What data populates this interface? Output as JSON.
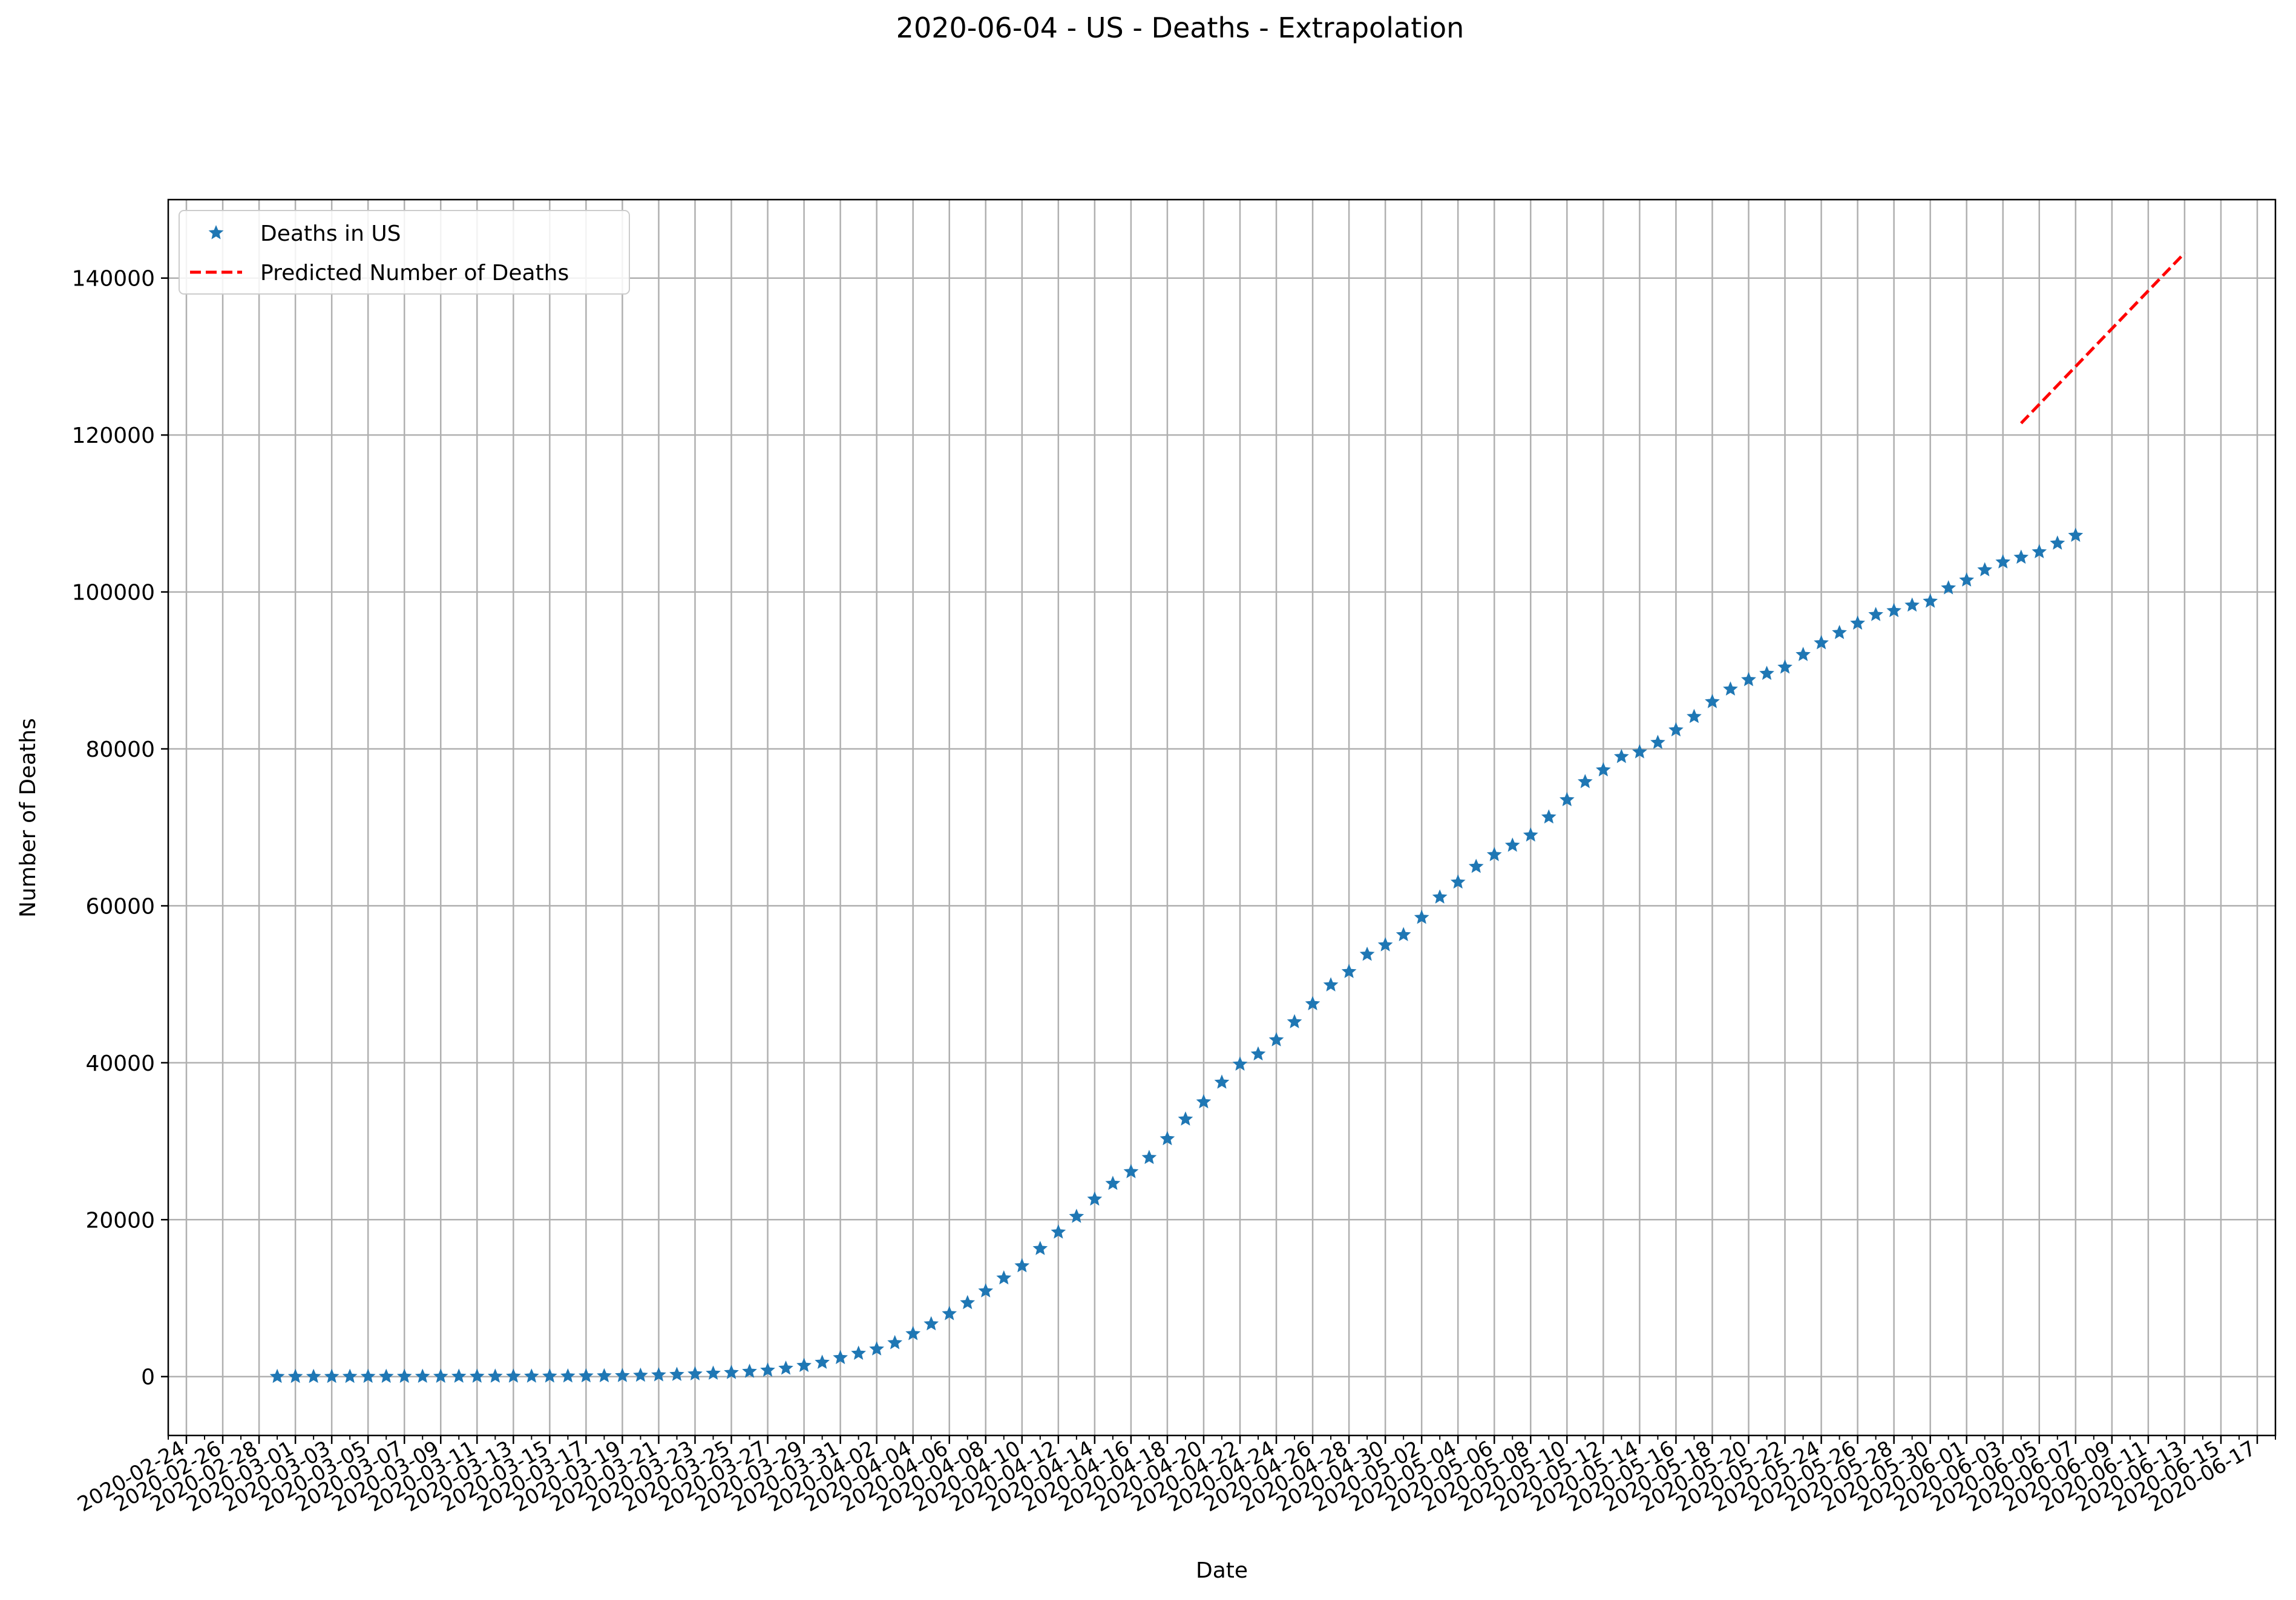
{
  "figure": {
    "title": "2020-06-04 - US - Deaths - Extrapolation"
  },
  "chart_data": {
    "type": "line",
    "title": "2020-06-04 - US - Deaths - Extrapolation",
    "xlabel": "Date",
    "ylabel": "Number of Deaths",
    "xlim": [
      "2020-02-23",
      "2020-06-18"
    ],
    "ylim": [
      -7500,
      150000
    ],
    "grid": true,
    "legend_position": "top-left",
    "x_tick_labels": [
      "2020-02-24",
      "2020-02-26",
      "2020-02-28",
      "2020-03-01",
      "2020-03-03",
      "2020-03-05",
      "2020-03-07",
      "2020-03-09",
      "2020-03-11",
      "2020-03-13",
      "2020-03-15",
      "2020-03-17",
      "2020-03-19",
      "2020-03-21",
      "2020-03-23",
      "2020-03-25",
      "2020-03-27",
      "2020-03-29",
      "2020-03-31",
      "2020-04-02",
      "2020-04-04",
      "2020-04-06",
      "2020-04-08",
      "2020-04-10",
      "2020-04-12",
      "2020-04-14",
      "2020-04-16",
      "2020-04-18",
      "2020-04-20",
      "2020-04-22",
      "2020-04-24",
      "2020-04-26",
      "2020-04-28",
      "2020-04-30",
      "2020-05-02",
      "2020-05-04",
      "2020-05-06",
      "2020-05-08",
      "2020-05-10",
      "2020-05-12",
      "2020-05-14",
      "2020-05-16",
      "2020-05-18",
      "2020-05-20",
      "2020-05-22",
      "2020-05-24",
      "2020-05-26",
      "2020-05-28",
      "2020-05-30",
      "2020-06-01",
      "2020-06-03",
      "2020-06-05",
      "2020-06-07",
      "2020-06-09",
      "2020-06-11",
      "2020-06-13",
      "2020-06-15",
      "2020-06-17"
    ],
    "y_ticks": [
      0,
      20000,
      40000,
      60000,
      80000,
      100000,
      120000,
      140000
    ],
    "y_tick_labels": [
      "0",
      "20000",
      "40000",
      "60000",
      "80000",
      "100000",
      "120000",
      "140000"
    ],
    "series": [
      {
        "name": "Deaths in US",
        "style": "star-markers",
        "color": "#1f77b4",
        "x_start": "2020-02-29",
        "x_end": "2020-06-03",
        "values": [
          1,
          1,
          1,
          2,
          6,
          9,
          11,
          12,
          15,
          19,
          22,
          26,
          30,
          38,
          41,
          48,
          57,
          68,
          85,
          108,
          150,
          200,
          255,
          325,
          410,
          500,
          650,
          800,
          1050,
          1400,
          1800,
          2400,
          2950,
          3500,
          4300,
          5450,
          6700,
          8000,
          9400,
          10900,
          12550,
          14100,
          16300,
          18400,
          20400,
          22600,
          24600,
          26100,
          27900,
          30300,
          32800,
          35000,
          37500,
          39800,
          41100,
          42900,
          45200,
          47500,
          49900,
          51600,
          53800,
          55000,
          56300,
          58500,
          61100,
          63000,
          65000,
          66500,
          67700,
          69000,
          71300,
          73500,
          75800,
          77300,
          79000,
          79600,
          80800,
          82400,
          84100,
          86000,
          87600,
          88800,
          89600,
          90400,
          92000,
          93500,
          94800,
          96000,
          97100,
          97600,
          98300,
          98800,
          100500,
          101500,
          102800,
          103800,
          104400,
          105100,
          106200,
          107200
        ]
      },
      {
        "name": "Predicted Number of Deaths",
        "style": "dashed-line",
        "color": "#ff0000",
        "x": [
          "2020-06-04",
          "2020-06-13"
        ],
        "y": [
          121500,
          143200
        ]
      }
    ]
  }
}
